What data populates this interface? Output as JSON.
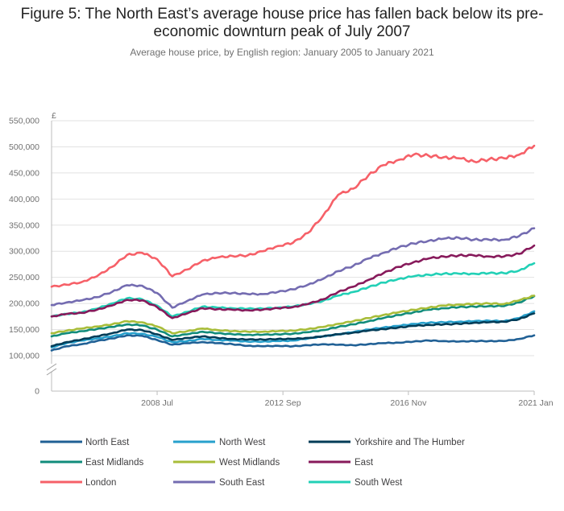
{
  "chart_data": {
    "type": "line",
    "title": "Figure 5: The North East’s average house price has fallen back below its pre-economic downturn peak of July 2007",
    "subtitle": "Average house price, by English region: January 2005 to January 2021",
    "ylabel": "£",
    "xlabel": "",
    "ylim": [
      0,
      550000
    ],
    "y_ticks": [
      {
        "value": 0,
        "label": "0"
      },
      {
        "value": 100000,
        "label": "100,000"
      },
      {
        "value": 150000,
        "label": "150,000"
      },
      {
        "value": 200000,
        "label": "200,000"
      },
      {
        "value": 250000,
        "label": "250,000"
      },
      {
        "value": 300000,
        "label": "300,000"
      },
      {
        "value": 350000,
        "label": "350,000"
      },
      {
        "value": 400000,
        "label": "400,000"
      },
      {
        "value": 450000,
        "label": "450,000"
      },
      {
        "value": 500000,
        "label": "500,000"
      },
      {
        "value": 550000,
        "label": "550,000"
      }
    ],
    "y_axis_break": true,
    "x_ticks": [
      {
        "value": 2008.5,
        "label": "2008 Jul"
      },
      {
        "value": 2012.67,
        "label": "2012 Sep"
      },
      {
        "value": 2016.83,
        "label": "2016 Nov"
      },
      {
        "value": 2021.0,
        "label": "2021 Jan"
      }
    ],
    "xlim": [
      2005.0,
      2021.0
    ],
    "grid": true,
    "legend_position": "bottom",
    "x": [
      2005.0,
      2005.5,
      2006.0,
      2006.5,
      2007.0,
      2007.5,
      2008.0,
      2008.5,
      2009.0,
      2009.5,
      2010.0,
      2010.5,
      2011.0,
      2011.5,
      2012.0,
      2012.5,
      2013.0,
      2013.5,
      2014.0,
      2014.5,
      2015.0,
      2015.5,
      2016.0,
      2016.5,
      2017.0,
      2017.5,
      2018.0,
      2018.5,
      2019.0,
      2019.5,
      2020.0,
      2020.5,
      2021.0
    ],
    "series": [
      {
        "name": "North East",
        "color": "#206095",
        "values": [
          110000,
          118000,
          122000,
          128000,
          133000,
          139000,
          138000,
          130000,
          121000,
          124000,
          126000,
          124000,
          122000,
          119000,
          118000,
          119000,
          118000,
          120000,
          122000,
          121000,
          120000,
          122000,
          124000,
          125000,
          127000,
          129000,
          128000,
          127000,
          128000,
          128000,
          128000,
          132000,
          139000
        ]
      },
      {
        "name": "North West",
        "color": "#27a0cc",
        "values": [
          116000,
          124000,
          129000,
          133000,
          137000,
          143000,
          142000,
          136000,
          126000,
          128000,
          132000,
          130000,
          129000,
          127000,
          127000,
          128000,
          129000,
          133000,
          137000,
          141000,
          145000,
          150000,
          154000,
          157000,
          161000,
          163000,
          164000,
          165000,
          166000,
          167000,
          166000,
          172000,
          185000
        ]
      },
      {
        "name": "Yorkshire and The Humber",
        "color": "#003c57",
        "values": [
          118000,
          126000,
          131000,
          137000,
          143000,
          150000,
          149000,
          141000,
          130000,
          134000,
          137000,
          134000,
          132000,
          131000,
          131000,
          132000,
          132000,
          134000,
          137000,
          141000,
          144000,
          148000,
          151000,
          154000,
          157000,
          159000,
          160000,
          161000,
          163000,
          164000,
          165000,
          170000,
          181000
        ]
      },
      {
        "name": "East Midlands",
        "color": "#118c7b",
        "values": [
          137000,
          143000,
          147000,
          151000,
          155000,
          160000,
          158000,
          150000,
          137000,
          141000,
          146000,
          143000,
          141000,
          140000,
          140000,
          141000,
          142000,
          145000,
          149000,
          155000,
          160000,
          166000,
          172000,
          178000,
          183000,
          188000,
          191000,
          193000,
          194000,
          195000,
          195000,
          202000,
          214000
        ]
      },
      {
        "name": "West Midlands",
        "color": "#a8bd3a",
        "values": [
          143000,
          148000,
          152000,
          156000,
          160000,
          166000,
          164000,
          156000,
          143000,
          147000,
          152000,
          149000,
          147000,
          146000,
          146000,
          147000,
          148000,
          151000,
          155000,
          161000,
          166000,
          172000,
          178000,
          183000,
          188000,
          192000,
          196000,
          198000,
          199000,
          200000,
          199000,
          206000,
          215000
        ]
      },
      {
        "name": "East",
        "color": "#871a5b",
        "values": [
          175000,
          180000,
          182000,
          188000,
          196000,
          207000,
          206000,
          193000,
          172000,
          181000,
          191000,
          189000,
          188000,
          187000,
          188000,
          191000,
          193000,
          199000,
          208000,
          222000,
          232000,
          245000,
          258000,
          270000,
          279000,
          286000,
          290000,
          292000,
          292000,
          290000,
          290000,
          295000,
          311000
        ]
      },
      {
        "name": "London",
        "color": "#f66068",
        "values": [
          232000,
          236000,
          241000,
          252000,
          270000,
          293000,
          297000,
          285000,
          252000,
          265000,
          282000,
          288000,
          291000,
          292000,
          300000,
          310000,
          316000,
          335000,
          368000,
          408000,
          420000,
          445000,
          465000,
          475000,
          485000,
          483000,
          480000,
          478000,
          472000,
          476000,
          478000,
          485000,
          502000
        ]
      },
      {
        "name": "South East",
        "color": "#746cb1",
        "values": [
          197000,
          202000,
          206000,
          212000,
          222000,
          235000,
          234000,
          220000,
          192000,
          205000,
          217000,
          220000,
          220000,
          218000,
          218000,
          222000,
          227000,
          236000,
          247000,
          262000,
          272000,
          286000,
          297000,
          307000,
          315000,
          320000,
          324000,
          326000,
          322000,
          322000,
          322000,
          329000,
          344000
        ]
      },
      {
        "name": "South West",
        "color": "#22d0b6",
        "values": [
          175000,
          180000,
          183000,
          190000,
          200000,
          210000,
          208000,
          196000,
          175000,
          184000,
          194000,
          192000,
          191000,
          190000,
          190000,
          192000,
          194000,
          199000,
          205000,
          215000,
          222000,
          231000,
          240000,
          247000,
          252000,
          255000,
          257000,
          257000,
          257000,
          258000,
          258000,
          263000,
          277000
        ]
      }
    ]
  }
}
